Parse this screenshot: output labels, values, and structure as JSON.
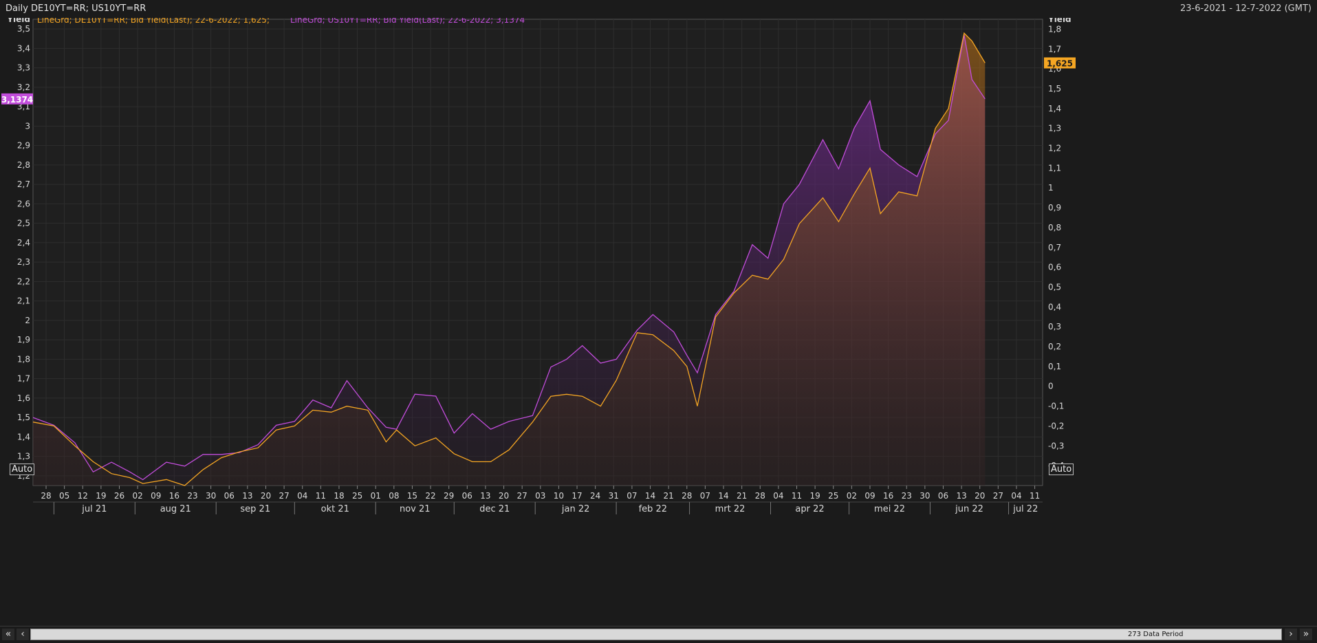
{
  "header": {
    "title": "Daily DE10YT=RR; US10YT=RR",
    "date_range": "23-6-2021 - 12-7-2022 (GMT)"
  },
  "legend": [
    {
      "text": "LineGrd; DE10YT=RR; Bid Yield(Last); 22-6-2022; 1,625;",
      "color": "#f5a623"
    },
    {
      "text": "LineGrd; US10YT=RR; Bid Yield(Last); 22-6-2022; 3,1374",
      "color": "#c24ddb"
    }
  ],
  "footer": {
    "data_period": "273 Data Period",
    "auto_left": "Auto",
    "auto_right": "Auto"
  },
  "colors": {
    "de": "#f5a623",
    "us": "#c24ddb",
    "bg": "#1b1b1b",
    "grid": "#2e2e2e"
  },
  "chart_data": {
    "type": "line",
    "title": "Daily DE10YT=RR; US10YT=RR",
    "y_left": {
      "label": "Yield",
      "ylim": [
        1.15,
        3.55
      ],
      "ticks": [
        "3,5",
        "3,4",
        "3,3",
        "3,2",
        "3,1",
        "3",
        "2,9",
        "2,8",
        "2,7",
        "2,6",
        "2,5",
        "2,4",
        "2,3",
        "2,2",
        "2,1",
        "2",
        "1,9",
        "1,8",
        "1,7",
        "1,6",
        "1,5",
        "1,4",
        "1,3",
        "1,2"
      ],
      "tick_values": [
        3.5,
        3.4,
        3.3,
        3.2,
        3.1,
        3.0,
        2.9,
        2.8,
        2.7,
        2.6,
        2.5,
        2.4,
        2.3,
        2.2,
        2.1,
        2.0,
        1.9,
        1.8,
        1.7,
        1.6,
        1.5,
        1.4,
        1.3,
        1.2
      ],
      "last_value_label": "3,1374"
    },
    "y_right": {
      "label": "Yield",
      "ylim": [
        -0.5,
        1.85
      ],
      "ticks": [
        "1,8",
        "1,7",
        "1,6",
        "1,5",
        "1,4",
        "1,3",
        "1,2",
        "1,1",
        "1",
        "0,9",
        "0,8",
        "0,7",
        "0,6",
        "0,5",
        "0,4",
        "0,3",
        "0,2",
        "0,1",
        "0",
        "-0,1",
        "-0,2",
        "-0,3",
        "-0,4"
      ],
      "tick_values": [
        1.8,
        1.7,
        1.6,
        1.5,
        1.4,
        1.3,
        1.2,
        1.1,
        1.0,
        0.9,
        0.8,
        0.7,
        0.6,
        0.5,
        0.4,
        0.3,
        0.2,
        0.1,
        0.0,
        -0.1,
        -0.2,
        -0.3,
        -0.4
      ],
      "last_value_label": "1,625"
    },
    "x_day_ticks": [
      "28",
      "05",
      "12",
      "19",
      "26",
      "02",
      "09",
      "16",
      "23",
      "30",
      "06",
      "13",
      "20",
      "27",
      "04",
      "11",
      "18",
      "25",
      "01",
      "08",
      "15",
      "22",
      "29",
      "06",
      "13",
      "20",
      "27",
      "03",
      "10",
      "17",
      "24",
      "31",
      "07",
      "14",
      "21",
      "28",
      "07",
      "14",
      "21",
      "28",
      "04",
      "11",
      "19",
      "25",
      "02",
      "09",
      "16",
      "23",
      "30",
      "06",
      "13",
      "20",
      "27",
      "04",
      "11"
    ],
    "x_months": [
      "jul 21",
      "aug 21",
      "sep 21",
      "okt 21",
      "nov 21",
      "dec 21",
      "jan 22",
      "feb 22",
      "mrt 22",
      "apr 22",
      "mei 22",
      "jun 22",
      "jul 22"
    ],
    "series": [
      {
        "name": "US10YT=RR",
        "axis": "left",
        "x": [
          "2021-06-23",
          "2021-07-01",
          "2021-07-09",
          "2021-07-16",
          "2021-07-23",
          "2021-07-30",
          "2021-08-04",
          "2021-08-13",
          "2021-08-20",
          "2021-08-27",
          "2021-09-03",
          "2021-09-10",
          "2021-09-17",
          "2021-09-24",
          "2021-10-01",
          "2021-10-08",
          "2021-10-15",
          "2021-10-21",
          "2021-10-29",
          "2021-11-05",
          "2021-11-09",
          "2021-11-16",
          "2021-11-24",
          "2021-12-01",
          "2021-12-08",
          "2021-12-15",
          "2021-12-22",
          "2021-12-31",
          "2022-01-07",
          "2022-01-13",
          "2022-01-19",
          "2022-01-26",
          "2022-02-01",
          "2022-02-09",
          "2022-02-15",
          "2022-02-23",
          "2022-02-28",
          "2022-03-04",
          "2022-03-11",
          "2022-03-18",
          "2022-03-25",
          "2022-03-31",
          "2022-04-06",
          "2022-04-12",
          "2022-04-21",
          "2022-04-27",
          "2022-05-03",
          "2022-05-09",
          "2022-05-13",
          "2022-05-20",
          "2022-05-27",
          "2022-06-03",
          "2022-06-08",
          "2022-06-14",
          "2022-06-17",
          "2022-06-22"
        ],
        "values": [
          1.5,
          1.46,
          1.37,
          1.22,
          1.27,
          1.22,
          1.18,
          1.27,
          1.25,
          1.31,
          1.31,
          1.32,
          1.36,
          1.46,
          1.48,
          1.59,
          1.55,
          1.69,
          1.55,
          1.45,
          1.44,
          1.62,
          1.61,
          1.42,
          1.52,
          1.44,
          1.48,
          1.51,
          1.76,
          1.8,
          1.87,
          1.78,
          1.8,
          1.95,
          2.03,
          1.94,
          1.82,
          1.73,
          2.03,
          2.15,
          2.39,
          2.32,
          2.6,
          2.7,
          2.93,
          2.78,
          2.99,
          3.13,
          2.88,
          2.8,
          2.74,
          2.96,
          3.03,
          3.47,
          3.24,
          3.14
        ]
      },
      {
        "name": "DE10YT=RR",
        "axis": "right",
        "x": [
          "2021-06-23",
          "2021-07-01",
          "2021-07-09",
          "2021-07-16",
          "2021-07-23",
          "2021-07-30",
          "2021-08-04",
          "2021-08-13",
          "2021-08-20",
          "2021-08-27",
          "2021-09-03",
          "2021-09-10",
          "2021-09-17",
          "2021-09-24",
          "2021-10-01",
          "2021-10-08",
          "2021-10-15",
          "2021-10-21",
          "2021-10-29",
          "2021-11-05",
          "2021-11-09",
          "2021-11-16",
          "2021-11-24",
          "2021-12-01",
          "2021-12-08",
          "2021-12-15",
          "2021-12-22",
          "2021-12-31",
          "2022-01-07",
          "2022-01-13",
          "2022-01-19",
          "2022-01-26",
          "2022-02-01",
          "2022-02-09",
          "2022-02-15",
          "2022-02-23",
          "2022-02-28",
          "2022-03-04",
          "2022-03-11",
          "2022-03-18",
          "2022-03-25",
          "2022-03-31",
          "2022-04-06",
          "2022-04-12",
          "2022-04-21",
          "2022-04-27",
          "2022-05-03",
          "2022-05-09",
          "2022-05-13",
          "2022-05-20",
          "2022-05-27",
          "2022-06-03",
          "2022-06-08",
          "2022-06-14",
          "2022-06-17",
          "2022-06-22"
        ],
        "values": [
          -0.18,
          -0.2,
          -0.3,
          -0.38,
          -0.44,
          -0.46,
          -0.49,
          -0.47,
          -0.5,
          -0.42,
          -0.36,
          -0.33,
          -0.31,
          -0.22,
          -0.2,
          -0.12,
          -0.13,
          -0.1,
          -0.12,
          -0.28,
          -0.22,
          -0.3,
          -0.26,
          -0.34,
          -0.38,
          -0.38,
          -0.32,
          -0.18,
          -0.05,
          -0.04,
          -0.05,
          -0.1,
          0.03,
          0.27,
          0.26,
          0.18,
          0.1,
          -0.1,
          0.35,
          0.47,
          0.56,
          0.54,
          0.64,
          0.82,
          0.95,
          0.83,
          0.97,
          1.1,
          0.87,
          0.98,
          0.96,
          1.3,
          1.4,
          1.78,
          1.74,
          1.63
        ]
      }
    ]
  }
}
